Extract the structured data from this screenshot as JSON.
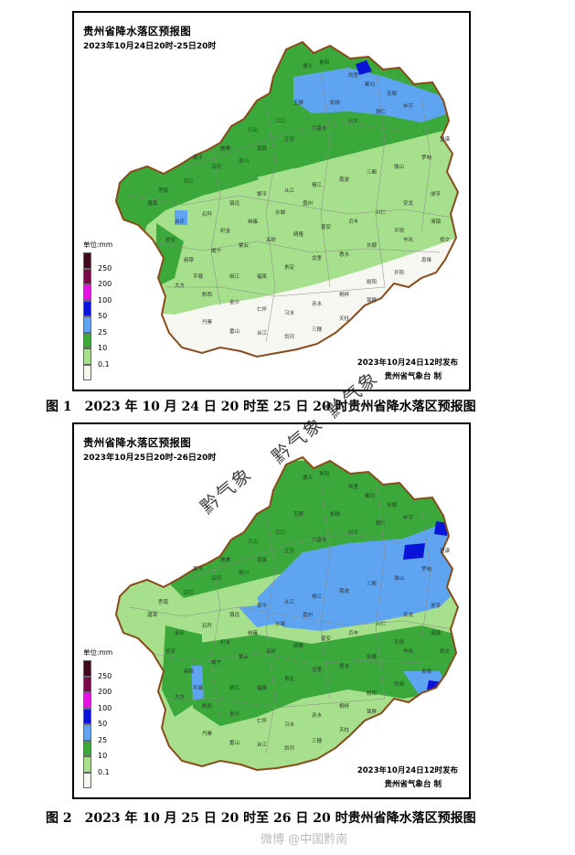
{
  "maps": [
    {
      "title": "贵州省降水落区预报图",
      "period": "2023年10月24日20时-25日20时",
      "issued": "2023年10月24日12时发布",
      "agency": "贵州省气象台 制",
      "caption": "图 1　2023 年 10 月 24 日 20 时至 25 日 20 时贵州省降水落区预报图"
    },
    {
      "title": "贵州省降水落区预报图",
      "period": "2023年10月25日20时-26日20时",
      "issued": "2023年10月24日12时发布",
      "agency": "贵州省气象台 制",
      "caption": "图 2　2023 年 10 月 25 日 20 时至 26 日 20 时贵州省降水落区预报图"
    }
  ],
  "legend": {
    "unit": "单位:mm",
    "levels": [
      {
        "label": "250",
        "color": "#3d0a1e"
      },
      {
        "label": "200",
        "color": "#7a0a4a"
      },
      {
        "label": "100",
        "color": "#e312e0"
      },
      {
        "label": "50",
        "color": "#0a14d8"
      },
      {
        "label": "25",
        "color": "#5fa4f0"
      },
      {
        "label": "10",
        "color": "#3aa83a"
      },
      {
        "label": "0.1",
        "color": "#a6e08c"
      },
      {
        "label": "",
        "color": "#f7f7f2"
      }
    ]
  },
  "watermarks": [
    "黔气象",
    "黔气象",
    "黔气象"
  ],
  "footer_watermark": "微博 @中国黔南",
  "city_labels": [
    "遵义",
    "贵阳",
    "凯里",
    "都匀",
    "安顺",
    "毕节",
    "铜仁",
    "兴义",
    "六盘水",
    "正安",
    "道真",
    "务川",
    "沿河",
    "印江",
    "思南",
    "湄潭",
    "余庆",
    "石阡",
    "镇远",
    "黎平",
    "从江",
    "榕江",
    "荔波",
    "三都",
    "独山",
    "罗甸",
    "望谟",
    "册亨",
    "安龙",
    "兴仁",
    "贞丰",
    "普安",
    "晴隆",
    "关岭",
    "紫云",
    "威宁",
    "赫章",
    "大方",
    "黔西",
    "金沙",
    "仁怀",
    "习水",
    "赤水",
    "桐梓",
    "绥阳",
    "开阳",
    "息烽",
    "修文",
    "清镇",
    "平坝",
    "长顺",
    "惠水",
    "龙里",
    "贵定",
    "福泉",
    "麻江",
    "丹寨",
    "雷山",
    "台江",
    "剑河",
    "三穗",
    "天柱",
    "锦屏",
    "岑巩",
    "玉屏",
    "松桃",
    "江口",
    "万山",
    "施秉",
    "黄平",
    "瓮安",
    "平塘",
    "织金",
    "纳雍",
    "水城",
    "盘州"
  ]
}
